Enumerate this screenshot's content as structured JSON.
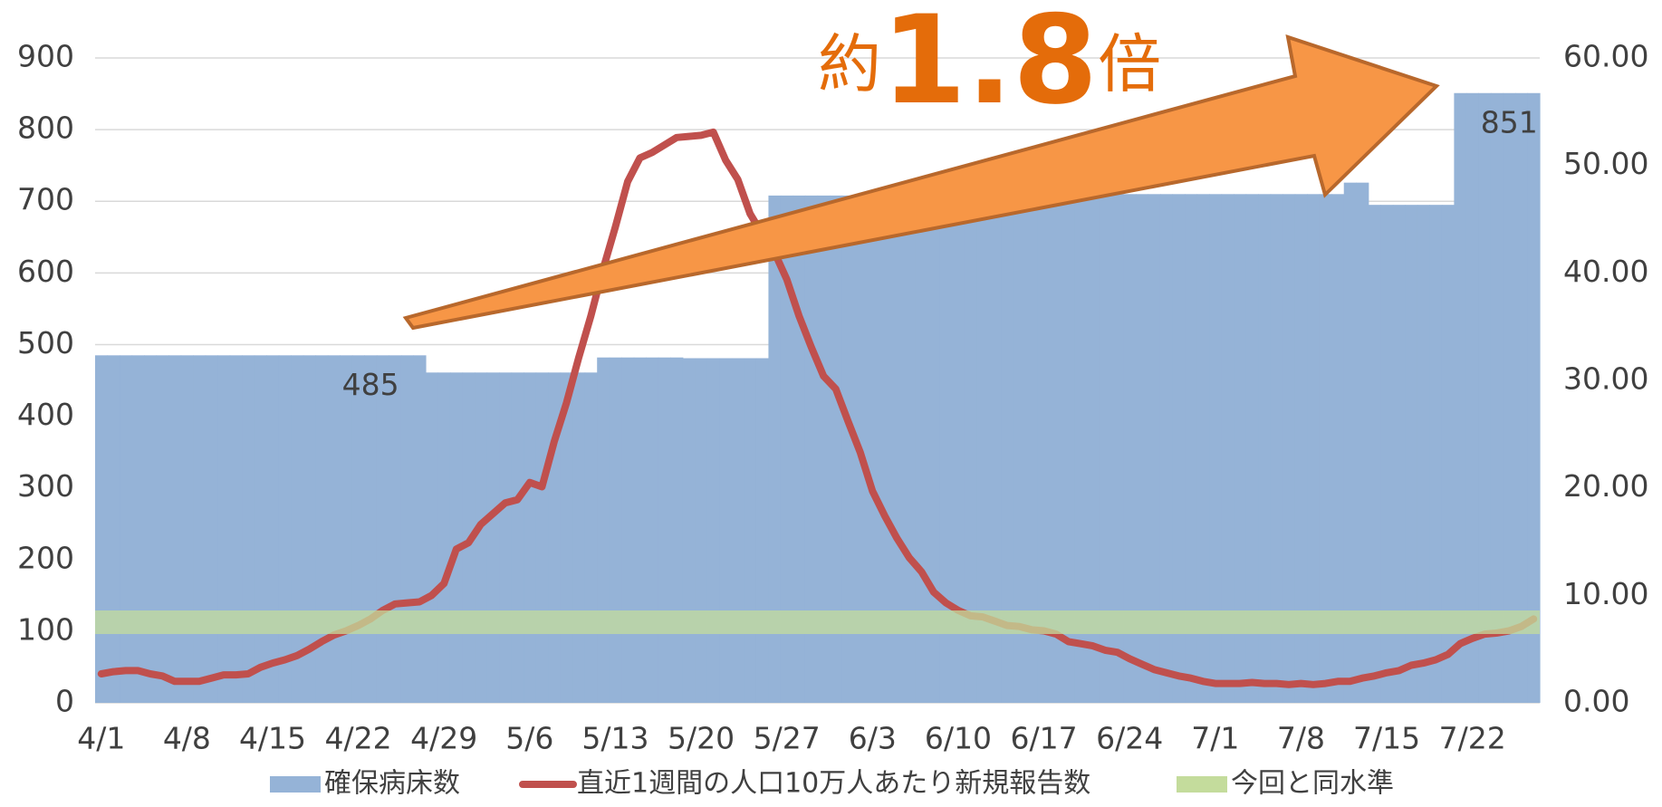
{
  "chart_data": {
    "type": "bar",
    "annotation": [
      "約",
      "1.8",
      "倍"
    ],
    "categories": [
      "4/1",
      null,
      null,
      null,
      null,
      null,
      null,
      "4/8",
      null,
      null,
      null,
      null,
      null,
      null,
      "4/15",
      null,
      null,
      null,
      null,
      null,
      null,
      "4/22",
      null,
      null,
      null,
      null,
      null,
      null,
      "4/29",
      null,
      null,
      null,
      null,
      null,
      null,
      "5/6",
      null,
      null,
      null,
      null,
      null,
      null,
      "5/13",
      null,
      null,
      null,
      null,
      null,
      null,
      "5/20",
      null,
      null,
      null,
      null,
      null,
      null,
      "5/27",
      null,
      null,
      null,
      null,
      null,
      null,
      "6/3",
      null,
      null,
      null,
      null,
      null,
      null,
      "6/10",
      null,
      null,
      null,
      null,
      null,
      null,
      "6/17",
      null,
      null,
      null,
      null,
      null,
      null,
      "6/24",
      null,
      null,
      null,
      null,
      null,
      null,
      "7/1",
      null,
      null,
      null,
      null,
      null,
      null,
      "7/8",
      null,
      null,
      null,
      null,
      null,
      null,
      "7/15",
      null,
      null,
      null,
      null,
      null,
      null,
      "7/22",
      null,
      null,
      null,
      null,
      null
    ],
    "series": [
      {
        "name": "確保病床数",
        "type": "bar",
        "color": "#95b3d7",
        "values": [
          485,
          485,
          485,
          485,
          485,
          485,
          485,
          485,
          485,
          485,
          485,
          485,
          485,
          485,
          485,
          485,
          485,
          485,
          485,
          485,
          485,
          485,
          485,
          485,
          485,
          485,
          485,
          461,
          461,
          461,
          461,
          461,
          461,
          461,
          461,
          461,
          461,
          461,
          461,
          461,
          461,
          482,
          482,
          482,
          482,
          482,
          482,
          482,
          481,
          481,
          481,
          481,
          481,
          481,
          481,
          708,
          708,
          708,
          708,
          708,
          708,
          708,
          708,
          708,
          708,
          708,
          708,
          708,
          708,
          708,
          708,
          708,
          708,
          708,
          708,
          708,
          708,
          708,
          708,
          708,
          708,
          708,
          710,
          710,
          710,
          710,
          710,
          710,
          710,
          710,
          710,
          710,
          710,
          710,
          710,
          710,
          710,
          710,
          710,
          710,
          710,
          710,
          726,
          726,
          695,
          695,
          695,
          695,
          695,
          695,
          695,
          851,
          851,
          851,
          851,
          851,
          851,
          851
        ],
        "value_labels": [
          null,
          null,
          null,
          null,
          null,
          null,
          null,
          null,
          null,
          null,
          null,
          null,
          null,
          null,
          null,
          null,
          null,
          null,
          null,
          null,
          null,
          null,
          "485",
          null,
          null,
          null,
          null,
          null,
          null,
          null,
          null,
          null,
          null,
          null,
          null,
          null,
          null,
          null,
          null,
          null,
          null,
          null,
          null,
          null,
          null,
          null,
          null,
          null,
          null,
          null,
          null,
          null,
          null,
          null,
          null,
          null,
          null,
          null,
          null,
          null,
          null,
          null,
          null,
          null,
          null,
          null,
          null,
          null,
          null,
          null,
          null,
          null,
          null,
          null,
          null,
          null,
          null,
          null,
          null,
          null,
          null,
          null,
          null,
          null,
          null,
          null,
          null,
          null,
          null,
          null,
          null,
          null,
          null,
          null,
          null,
          null,
          null,
          null,
          null,
          null,
          null,
          null,
          null,
          null,
          null,
          null,
          null,
          null,
          null,
          null,
          null,
          null,
          null,
          null,
          null,
          "851",
          null,
          null
        ]
      },
      {
        "name": "直近1週間の人口10万人あたり新規報告数",
        "type": "line",
        "color": "#c0504d",
        "axis": "y2",
        "values": [
          2.7,
          2.9,
          3.0,
          3.0,
          2.7,
          2.5,
          2.0,
          2.0,
          2.0,
          2.3,
          2.6,
          2.6,
          2.7,
          3.3,
          3.7,
          4.0,
          4.4,
          5.0,
          5.7,
          6.3,
          6.7,
          7.2,
          7.8,
          8.6,
          9.2,
          9.3,
          9.4,
          10.0,
          11.1,
          14.3,
          14.9,
          16.6,
          17.6,
          18.6,
          18.9,
          20.5,
          20.1,
          24.3,
          27.9,
          32.1,
          36.0,
          40.4,
          44.3,
          48.5,
          50.7,
          51.2,
          51.9,
          52.6,
          52.7,
          52.8,
          53.1,
          50.5,
          48.7,
          45.5,
          43.6,
          41.9,
          39.4,
          36.0,
          33.1,
          30.4,
          29.2,
          26.2,
          23.3,
          19.7,
          17.4,
          15.3,
          13.5,
          12.2,
          10.3,
          9.3,
          8.6,
          8.1,
          8.0,
          7.6,
          7.2,
          7.1,
          6.8,
          6.7,
          6.4,
          5.7,
          5.5,
          5.3,
          4.9,
          4.7,
          4.1,
          3.6,
          3.1,
          2.8,
          2.5,
          2.3,
          2.0,
          1.8,
          1.8,
          1.8,
          1.9,
          1.8,
          1.8,
          1.7,
          1.8,
          1.7,
          1.8,
          2.0,
          2.0,
          2.3,
          2.5,
          2.8,
          3.0,
          3.5,
          3.7,
          4.0,
          4.5,
          5.5,
          6.0,
          6.4,
          6.5,
          6.7,
          7.1,
          7.8
        ]
      },
      {
        "name": "今回と同水準",
        "type": "band",
        "color": "#c4dc9c",
        "axis": "y2",
        "value": 7.5
      }
    ],
    "ylim": [
      0,
      900
    ],
    "yticks": [
      0,
      100,
      200,
      300,
      400,
      500,
      600,
      700,
      800,
      900
    ],
    "y2lim": [
      0,
      60
    ],
    "y2ticks": [
      {
        "value": 0,
        "label": "0.00"
      },
      {
        "value": 10,
        "label": "10.00"
      },
      {
        "value": 20,
        "label": "20.00"
      },
      {
        "value": 30,
        "label": "30.00"
      },
      {
        "value": 40,
        "label": "40.00"
      },
      {
        "value": 50,
        "label": "50.00"
      },
      {
        "value": 60,
        "label": "60.00"
      }
    ],
    "grid": true,
    "legend": "bottom"
  }
}
